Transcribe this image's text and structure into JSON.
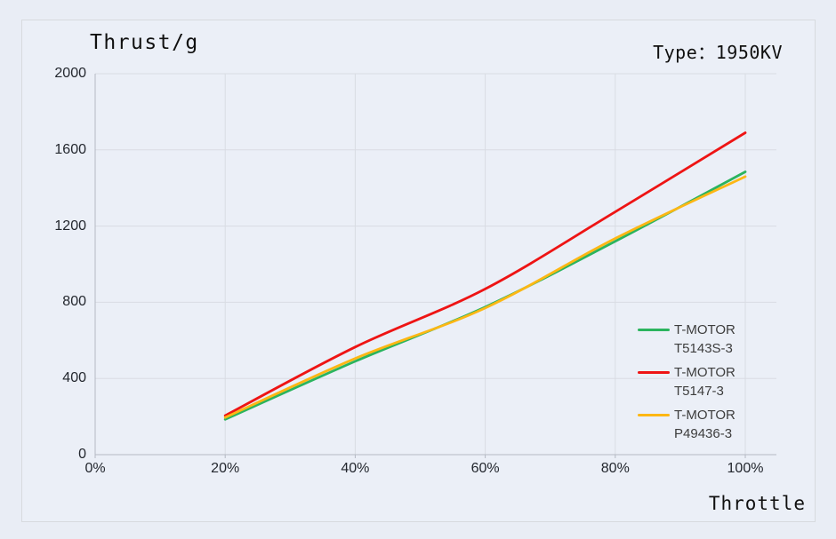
{
  "header": {
    "type_label": "Type：1950KV"
  },
  "chart_data": {
    "type": "line",
    "title": "Thrust/g",
    "xlabel": "Throttle",
    "ylabel": "Thrust/g",
    "categories": [
      "0%",
      "20%",
      "40%",
      "60%",
      "80%",
      "100%"
    ],
    "ylim": [
      0,
      2000
    ],
    "yticks": [
      0,
      400,
      800,
      1200,
      1600,
      2000
    ],
    "grid": "both",
    "legend_position": "inside-right",
    "series": [
      {
        "name": "T-MOTOR T5143S-3",
        "legend_lines": [
          "T-MOTOR",
          "T5143S-3"
        ],
        "color": "#2bb45e",
        "values": [
          null,
          185,
          490,
          775,
          1120,
          1485
        ]
      },
      {
        "name": "T-MOTOR T5147-3",
        "legend_lines": [
          "T-MOTOR",
          "T5147-3"
        ],
        "color": "#ee1414",
        "values": [
          null,
          205,
          565,
          870,
          1275,
          1690
        ]
      },
      {
        "name": "T-MOTOR P49436-3",
        "legend_lines": [
          "T-MOTOR",
          "P49436-3"
        ],
        "color": "#fdb714",
        "values": [
          null,
          195,
          505,
          770,
          1135,
          1460
        ]
      }
    ],
    "colors": {
      "background": "#e9edf5",
      "panel_background": "#ebeff7",
      "panel_border": "#d7dade",
      "gridline": "#d9dce3",
      "axis": "#b4b9c3",
      "tick_text": "#23272e",
      "legend_text": "#3d3d3d"
    }
  }
}
